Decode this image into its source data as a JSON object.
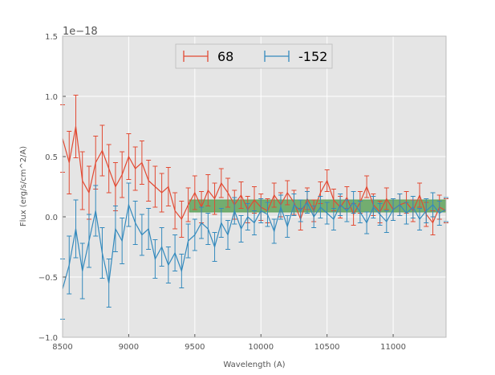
{
  "chart_data": {
    "type": "line",
    "title": "",
    "xlabel": "Wavelength (A)",
    "ylabel": "Flux (erg/s/cm^2/A)",
    "y_offset_label": "1e−18",
    "xlim": [
      8500,
      11400
    ],
    "ylim": [
      -1.0,
      1.5
    ],
    "y_scale_factor": "1e-18",
    "x_ticks": [
      8500,
      9000,
      9500,
      10000,
      10500,
      11000
    ],
    "x_tick_labels": [
      "8500",
      "9000",
      "9500",
      "10000",
      "10500",
      "11000"
    ],
    "y_ticks": [
      -1.0,
      -0.5,
      0.0,
      0.5,
      1.0,
      1.5
    ],
    "y_tick_labels": [
      "−1.0",
      "−0.5",
      "0.0",
      "0.5",
      "1.0",
      "1.5"
    ],
    "grid": true,
    "legend_position": "top-center",
    "band": {
      "x": [
        9460,
        11400
      ],
      "lower": [
        0.04,
        0.04
      ],
      "upper": [
        0.14,
        0.14
      ],
      "color": "#5fa35c"
    },
    "series": [
      {
        "name": "68",
        "color": "#e24a33",
        "x": [
          8500,
          8550,
          8600,
          8650,
          8700,
          8750,
          8800,
          8850,
          8900,
          8950,
          9000,
          9050,
          9100,
          9150,
          9200,
          9250,
          9300,
          9350,
          9400,
          9450,
          9500,
          9550,
          9600,
          9650,
          9700,
          9750,
          9800,
          9850,
          9900,
          9950,
          10000,
          10050,
          10100,
          10150,
          10200,
          10250,
          10300,
          10350,
          10400,
          10450,
          10500,
          10550,
          10600,
          10650,
          10700,
          10750,
          10800,
          10850,
          10900,
          10950,
          11000,
          11050,
          11100,
          11150,
          11200,
          11250,
          11300,
          11350,
          11400
        ],
        "y": [
          0.65,
          0.45,
          0.75,
          0.3,
          0.2,
          0.45,
          0.55,
          0.4,
          0.25,
          0.35,
          0.5,
          0.4,
          0.45,
          0.3,
          0.25,
          0.2,
          0.25,
          0.05,
          -0.02,
          0.1,
          0.2,
          0.08,
          0.22,
          0.15,
          0.28,
          0.2,
          0.1,
          0.18,
          0.06,
          0.14,
          0.08,
          0.05,
          0.18,
          0.1,
          0.2,
          0.12,
          -0.02,
          0.15,
          0.05,
          0.2,
          0.3,
          0.14,
          0.08,
          0.16,
          0.02,
          0.12,
          0.25,
          0.1,
          0.04,
          0.15,
          0.06,
          0.1,
          0.12,
          0.05,
          0.18,
          0.02,
          -0.05,
          0.08,
          0.05
        ],
        "err": [
          0.28,
          0.26,
          0.26,
          0.24,
          0.22,
          0.22,
          0.21,
          0.2,
          0.2,
          0.19,
          0.19,
          0.18,
          0.18,
          0.17,
          0.17,
          0.16,
          0.16,
          0.15,
          0.15,
          0.14,
          0.14,
          0.13,
          0.13,
          0.13,
          0.12,
          0.12,
          0.12,
          0.11,
          0.11,
          0.11,
          0.11,
          0.1,
          0.1,
          0.1,
          0.1,
          0.1,
          0.09,
          0.09,
          0.09,
          0.09,
          0.09,
          0.09,
          0.09,
          0.09,
          0.09,
          0.09,
          0.09,
          0.09,
          0.09,
          0.09,
          0.09,
          0.09,
          0.09,
          0.09,
          0.1,
          0.1,
          0.1,
          0.1,
          0.1
        ]
      },
      {
        "name": "-152",
        "color": "#348abd",
        "x": [
          8500,
          8550,
          8600,
          8650,
          8700,
          8750,
          8800,
          8850,
          8900,
          8950,
          9000,
          9050,
          9100,
          9150,
          9200,
          9250,
          9300,
          9350,
          9400,
          9450,
          9500,
          9550,
          9600,
          9650,
          9700,
          9750,
          9800,
          9850,
          9900,
          9950,
          10000,
          10050,
          10100,
          10150,
          10200,
          10250,
          10300,
          10350,
          10400,
          10450,
          10500,
          10550,
          10600,
          10650,
          10700,
          10750,
          10800,
          10850,
          10900,
          10950,
          11000,
          11050,
          11100,
          11150,
          11200,
          11250,
          11300,
          11350,
          11400
        ],
        "y": [
          -0.6,
          -0.4,
          -0.1,
          -0.45,
          -0.2,
          0.05,
          -0.3,
          -0.55,
          -0.1,
          -0.2,
          0.1,
          -0.05,
          -0.15,
          -0.1,
          -0.35,
          -0.25,
          -0.4,
          -0.3,
          -0.45,
          -0.2,
          -0.15,
          -0.05,
          -0.1,
          -0.25,
          -0.05,
          -0.15,
          0.05,
          -0.1,
          0.0,
          -0.05,
          0.05,
          0.02,
          -0.12,
          0.08,
          -0.08,
          0.1,
          0.05,
          0.12,
          0.0,
          0.08,
          0.03,
          -0.02,
          0.1,
          0.05,
          0.12,
          0.04,
          -0.05,
          0.08,
          0.02,
          -0.04,
          0.06,
          0.1,
          0.03,
          0.08,
          -0.02,
          0.05,
          0.1,
          0.03,
          0.06
        ],
        "err": [
          0.25,
          0.24,
          0.24,
          0.23,
          0.22,
          0.21,
          0.21,
          0.2,
          0.19,
          0.19,
          0.18,
          0.18,
          0.17,
          0.17,
          0.16,
          0.16,
          0.15,
          0.15,
          0.14,
          0.14,
          0.13,
          0.13,
          0.13,
          0.12,
          0.12,
          0.12,
          0.11,
          0.11,
          0.11,
          0.1,
          0.1,
          0.1,
          0.1,
          0.1,
          0.09,
          0.09,
          0.09,
          0.09,
          0.09,
          0.09,
          0.09,
          0.09,
          0.09,
          0.09,
          0.09,
          0.09,
          0.09,
          0.09,
          0.09,
          0.09,
          0.09,
          0.09,
          0.09,
          0.09,
          0.09,
          0.1,
          0.1,
          0.1,
          0.1
        ]
      }
    ]
  }
}
